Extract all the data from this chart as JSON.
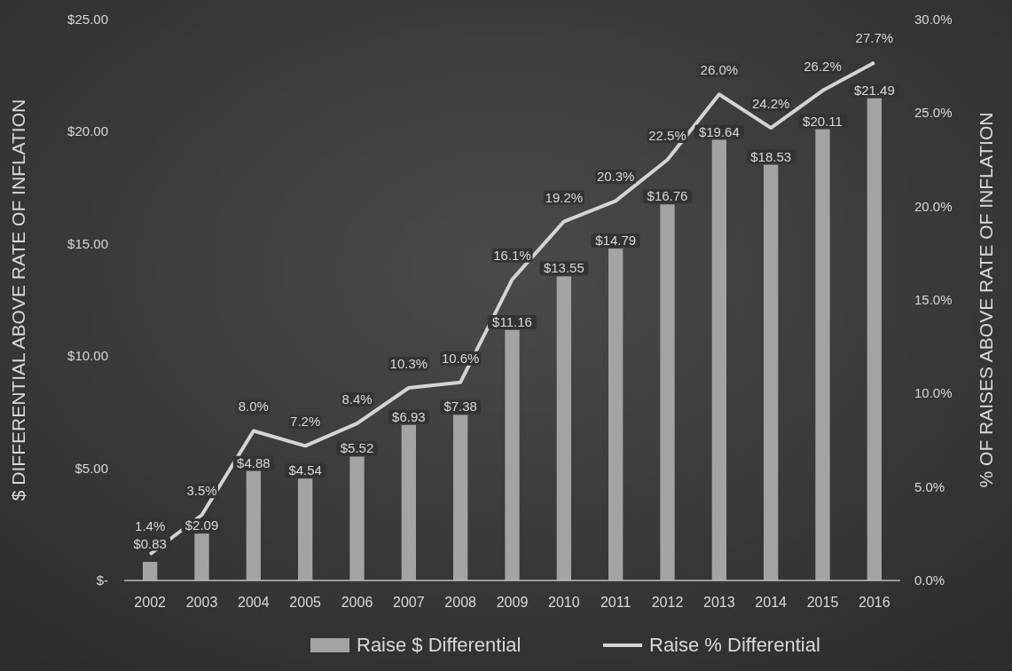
{
  "chart_data": {
    "type": "bar",
    "categories": [
      "2002",
      "2003",
      "2004",
      "2005",
      "2006",
      "2007",
      "2008",
      "2009",
      "2010",
      "2011",
      "2012",
      "2013",
      "2014",
      "2015",
      "2016"
    ],
    "ylabel": "$ DIFFERENTIAL ABOVE RATE OF INFLATION",
    "y2label": "% OF RAISES ABOVE RATE OF INFLATION",
    "ylim": [
      0,
      25
    ],
    "yticks": [
      {
        "value": 0,
        "label": "$-"
      },
      {
        "value": 5,
        "label": "$5.00"
      },
      {
        "value": 10,
        "label": "$10.00"
      },
      {
        "value": 15,
        "label": "$15.00"
      },
      {
        "value": 20,
        "label": "$20.00"
      },
      {
        "value": 25,
        "label": "$25.00"
      }
    ],
    "y2lim": [
      0,
      30
    ],
    "y2ticks": [
      {
        "value": 0,
        "label": "0.0%"
      },
      {
        "value": 5,
        "label": "5.0%"
      },
      {
        "value": 10,
        "label": "10.0%"
      },
      {
        "value": 15,
        "label": "15.0%"
      },
      {
        "value": 20,
        "label": "20.0%"
      },
      {
        "value": 25,
        "label": "25.0%"
      },
      {
        "value": 30,
        "label": "30.0%"
      }
    ],
    "legend": "bottom",
    "series": [
      {
        "name": "Raise $ Differential",
        "type": "bar",
        "color": "#a3a3a3",
        "values": [
          0.83,
          2.09,
          4.88,
          4.54,
          5.52,
          6.93,
          7.38,
          11.16,
          13.55,
          14.79,
          16.76,
          19.64,
          18.53,
          20.11,
          21.49
        ],
        "value_labels": [
          "$0.83",
          "$2.09",
          "$4.88",
          "$4.54",
          "$5.52",
          "$6.93",
          "$7.38",
          "$11.16",
          "$13.55",
          "$14.79",
          "$16.76",
          "$19.64",
          "$18.53",
          "$20.11",
          "$21.49"
        ]
      },
      {
        "name": "Raise % Differential",
        "type": "line",
        "axis": "y2",
        "color": "#d4d4d4",
        "values": [
          1.4,
          3.5,
          8.0,
          7.2,
          8.4,
          10.3,
          10.6,
          16.1,
          19.2,
          20.3,
          22.5,
          26.0,
          24.2,
          26.2,
          27.7
        ],
        "value_labels": [
          "1.4%",
          "3.5%",
          "8.0%",
          "7.2%",
          "8.4%",
          "10.3%",
          "10.6%",
          "16.1%",
          "19.2%",
          "20.3%",
          "22.5%",
          "26.0%",
          "24.2%",
          "26.2%",
          "27.7%"
        ]
      }
    ]
  }
}
